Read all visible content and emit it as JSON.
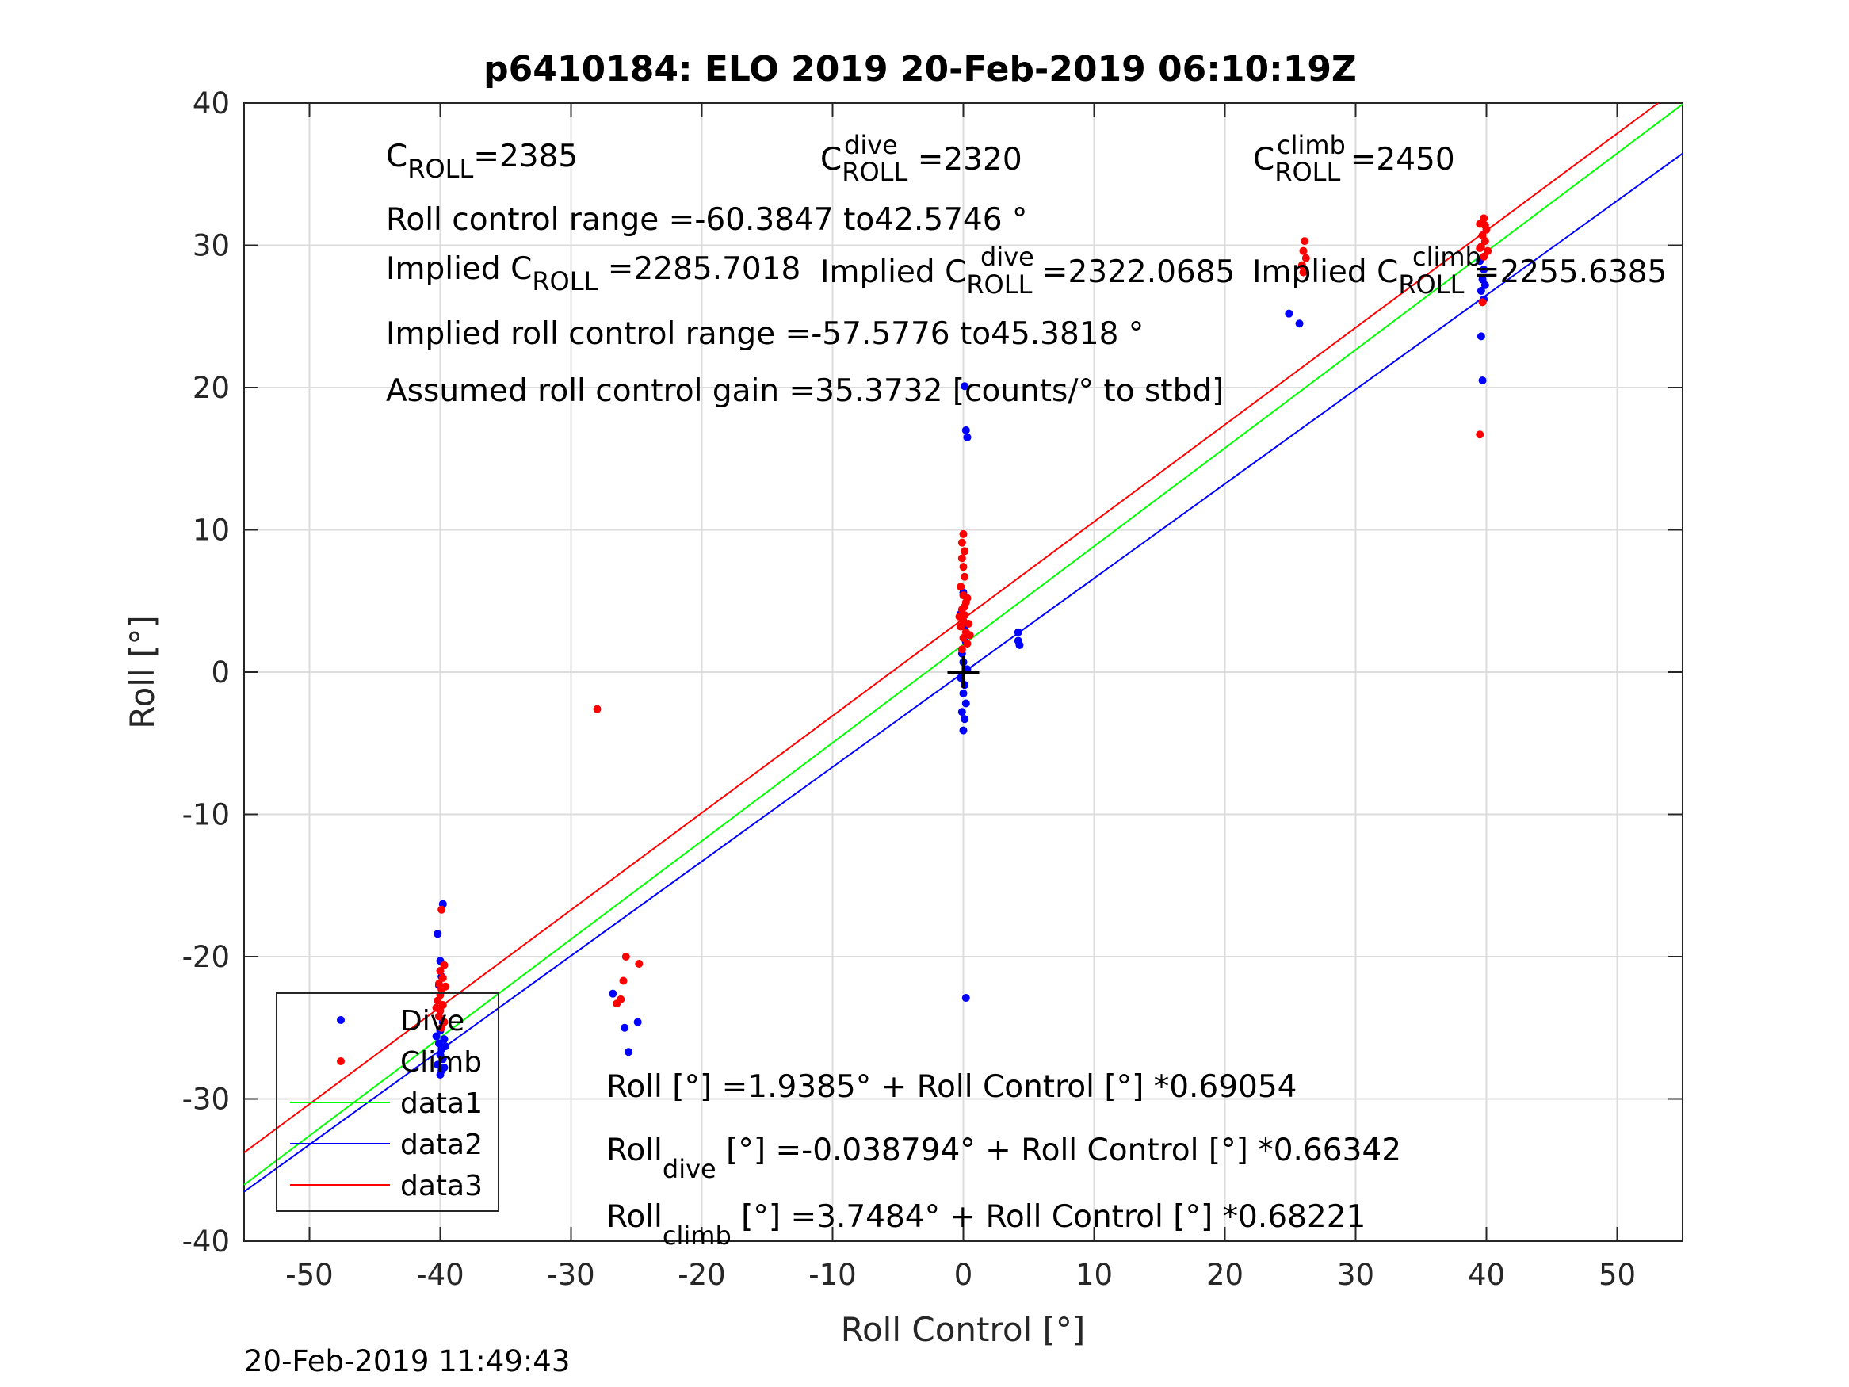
{
  "chart_data": {
    "type": "scatter",
    "title": "p6410184: ELO 2019 20-Feb-2019 06:10:19Z",
    "xlabel": "Roll Control [°]",
    "ylabel": "Roll [°]",
    "xlim": [
      -55,
      55
    ],
    "ylim": [
      -40,
      40
    ],
    "xticks": [
      -50,
      -40,
      -30,
      -20,
      -10,
      0,
      10,
      20,
      30,
      40,
      50
    ],
    "yticks": [
      -40,
      -30,
      -20,
      -10,
      0,
      10,
      20,
      30,
      40
    ],
    "xtick_labels": [
      "-50",
      "-40",
      "-30",
      "-20",
      "-10",
      "0",
      "10",
      "20",
      "30",
      "40",
      "50"
    ],
    "ytick_labels": [
      "-40",
      "-30",
      "-20",
      "-10",
      "0",
      "10",
      "20",
      "30",
      "40"
    ],
    "grid": true,
    "legend_position": "bottom-left",
    "series": [
      {
        "name": "Dive",
        "kind": "points",
        "color": "#0000ff",
        "points": [
          [
            -39.8,
            -16.3
          ],
          [
            -40.2,
            -18.4
          ],
          [
            -40.0,
            -20.3
          ],
          [
            -39.9,
            -21.4
          ],
          [
            -40.1,
            -22.0
          ],
          [
            -39.8,
            -24.6
          ],
          [
            -40.0,
            -25.2
          ],
          [
            -39.7,
            -25.8
          ],
          [
            -40.1,
            -26.1
          ],
          [
            -39.9,
            -26.5
          ],
          [
            -40.0,
            -26.9
          ],
          [
            -39.8,
            -27.2
          ],
          [
            -40.2,
            -27.6
          ],
          [
            -39.9,
            -28.0
          ],
          [
            -40.0,
            -28.3
          ],
          [
            -39.6,
            -26.3
          ],
          [
            -40.3,
            -25.6
          ],
          [
            -39.7,
            -27.8
          ],
          [
            -26.8,
            -22.6
          ],
          [
            -25.9,
            -25.0
          ],
          [
            -25.6,
            -26.7
          ],
          [
            -24.9,
            -24.6
          ],
          [
            0.0,
            5.6
          ],
          [
            -0.2,
            4.1
          ],
          [
            0.1,
            3.2
          ],
          [
            0.2,
            2.1
          ],
          [
            -0.1,
            1.3
          ],
          [
            0.0,
            0.7
          ],
          [
            0.3,
            0.2
          ],
          [
            -0.2,
            -0.4
          ],
          [
            0.1,
            -0.9
          ],
          [
            0.0,
            -1.5
          ],
          [
            0.2,
            -2.2
          ],
          [
            -0.1,
            -2.8
          ],
          [
            0.1,
            -3.3
          ],
          [
            0.0,
            -4.1
          ],
          [
            0.3,
            16.5
          ],
          [
            0.2,
            17.0
          ],
          [
            0.1,
            20.1
          ],
          [
            0.2,
            -22.9
          ],
          [
            4.2,
            2.8
          ],
          [
            4.2,
            2.2
          ],
          [
            4.3,
            1.9
          ],
          [
            24.9,
            25.2
          ],
          [
            25.7,
            24.5
          ],
          [
            39.7,
            20.5
          ],
          [
            39.6,
            23.6
          ],
          [
            39.8,
            26.2
          ],
          [
            39.6,
            26.8
          ],
          [
            39.9,
            27.2
          ],
          [
            39.7,
            27.6
          ],
          [
            39.8,
            28.3
          ],
          [
            39.5,
            28.9
          ]
        ]
      },
      {
        "name": "Climb",
        "kind": "points",
        "color": "#ff0000",
        "points": [
          [
            -39.9,
            -16.7
          ],
          [
            -39.7,
            -20.6
          ],
          [
            -40.0,
            -21.0
          ],
          [
            -39.8,
            -21.5
          ],
          [
            -40.1,
            -21.9
          ],
          [
            -39.9,
            -22.3
          ],
          [
            -40.0,
            -22.7
          ],
          [
            -40.2,
            -23.1
          ],
          [
            -39.8,
            -23.4
          ],
          [
            -40.0,
            -23.8
          ],
          [
            -40.1,
            -24.2
          ],
          [
            -39.7,
            -24.6
          ],
          [
            -39.9,
            -25.0
          ],
          [
            -40.3,
            -23.6
          ],
          [
            -39.6,
            -22.1
          ],
          [
            -28.0,
            -2.6
          ],
          [
            -26.5,
            -23.3
          ],
          [
            -26.2,
            -23.0
          ],
          [
            -26.0,
            -21.7
          ],
          [
            -25.8,
            -20.0
          ],
          [
            -24.8,
            -20.5
          ],
          [
            0.0,
            9.7
          ],
          [
            -0.1,
            9.1
          ],
          [
            0.1,
            8.5
          ],
          [
            -0.1,
            8.0
          ],
          [
            0.0,
            7.4
          ],
          [
            0.1,
            6.7
          ],
          [
            -0.2,
            6.0
          ],
          [
            0.0,
            5.4
          ],
          [
            0.2,
            4.9
          ],
          [
            -0.1,
            4.4
          ],
          [
            0.1,
            4.0
          ],
          [
            0.0,
            3.6
          ],
          [
            -0.2,
            3.2
          ],
          [
            0.2,
            2.8
          ],
          [
            0.0,
            2.4
          ],
          [
            0.3,
            2.0
          ],
          [
            -0.1,
            1.6
          ],
          [
            0.1,
            4.6
          ],
          [
            0.4,
            3.4
          ],
          [
            -0.3,
            3.9
          ],
          [
            0.5,
            2.6
          ],
          [
            0.3,
            5.2
          ],
          [
            26.1,
            30.3
          ],
          [
            26.0,
            29.6
          ],
          [
            26.2,
            29.1
          ],
          [
            25.9,
            28.6
          ],
          [
            26.0,
            28.1
          ],
          [
            39.8,
            31.9
          ],
          [
            39.5,
            31.5
          ],
          [
            40.0,
            31.1
          ],
          [
            39.7,
            30.7
          ],
          [
            39.9,
            30.3
          ],
          [
            39.6,
            29.9
          ],
          [
            40.1,
            29.6
          ],
          [
            39.8,
            29.2
          ],
          [
            39.5,
            29.8
          ],
          [
            39.9,
            31.4
          ],
          [
            39.7,
            26.0
          ],
          [
            39.5,
            16.7
          ]
        ]
      },
      {
        "name": "data1",
        "kind": "line",
        "color": "#00ff00",
        "intercept": 1.9385,
        "slope": 0.69054
      },
      {
        "name": "data2",
        "kind": "line",
        "color": "#0000ff",
        "intercept": -0.038794,
        "slope": 0.66342
      },
      {
        "name": "data3",
        "kind": "line",
        "color": "#ff0000",
        "intercept": 3.7484,
        "slope": 0.68221
      }
    ],
    "origin_marker": {
      "symbol": "+",
      "color": "#000000",
      "x": 0,
      "y": 0
    },
    "legend": [
      "Dive",
      "Climb",
      "data1",
      "data2",
      "data3"
    ]
  },
  "annotations": {
    "c_roll": {
      "main": "C",
      "sub": "ROLL",
      "rest": "=2385"
    },
    "c_roll_dive": {
      "main": "C",
      "sup": "dive",
      "sub": "ROLL",
      "rest": " =2320"
    },
    "c_roll_climb": {
      "main": "C",
      "sup": "climb",
      "sub": "ROLL",
      "rest": " =2450"
    },
    "roll_control_range": "Roll control range =-60.3847 to42.5746 °",
    "implied_c_roll": {
      "main": "Implied C",
      "sub": "ROLL",
      "rest": " =2285.7018"
    },
    "implied_c_roll_dive": {
      "main": "Implied C",
      "sup": "dive",
      "sub": "ROLL",
      "rest": " =2322.0685"
    },
    "implied_c_roll_climb": {
      "main": "Implied C",
      "sup": "climb",
      "sub": "ROLL",
      "rest": " =2255.6385"
    },
    "implied_range": "Implied roll control range =-57.5776 to45.3818 °",
    "assumed_gain": "Assumed roll control gain =35.3732 [counts/° to stbd]",
    "fit_all": "Roll [°] =1.9385° + Roll Control [°] *0.69054",
    "fit_dive": {
      "main": "Roll",
      "sub": "dive",
      "rest": " [°] =-0.038794° + Roll Control [°] *0.66342"
    },
    "fit_climb": {
      "main": "Roll",
      "sub": "climb",
      "rest": " [°] =3.7484° + Roll Control [°] *0.68221"
    }
  },
  "timestamp": "20-Feb-2019 11:49:43"
}
